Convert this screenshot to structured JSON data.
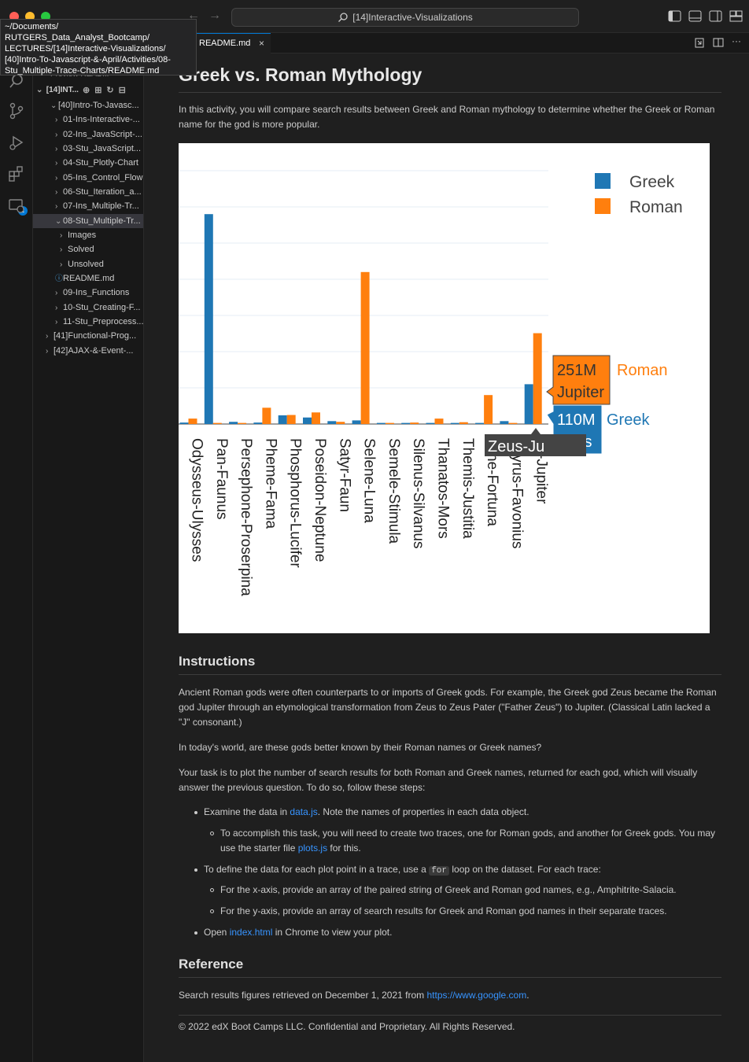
{
  "window": {
    "search_text": "[14]Interactive-Visualizations",
    "tooltip_path": "~/Documents/\nRUTGERS_Data_Analyst_Bootcamp/\nLECTURES/[14]Interactive-Visualizations/\n[40]Intro-To-Javascript-&-April/Activities/08-\nStu_Multiple-Trace-Charts/README.md",
    "activity_badge": "1"
  },
  "sidebar": {
    "partial_top": "Preview READ...",
    "section_title": "[14]INT...",
    "items": [
      {
        "label": "[40]Intro-To-Javasc...",
        "chev": "v"
      },
      {
        "label": "01-Ins-Interactive-...",
        "chev": ">"
      },
      {
        "label": "02-Ins_JavaScript-...",
        "chev": ">"
      },
      {
        "label": "03-Stu_JavaScript...",
        "chev": ">"
      },
      {
        "label": "04-Stu_Plotly-Chart",
        "chev": ">"
      },
      {
        "label": "05-Ins_Control_Flow",
        "chev": ">"
      },
      {
        "label": "06-Stu_Iteration_a...",
        "chev": ">"
      },
      {
        "label": "07-Ins_Multiple-Tr...",
        "chev": ">"
      },
      {
        "label": "08-Stu_Multiple-Tr...",
        "chev": "v"
      },
      {
        "label": "Images",
        "chev": ">"
      },
      {
        "label": "Solved",
        "chev": ">"
      },
      {
        "label": "Unsolved",
        "chev": ">"
      },
      {
        "label": "README.md",
        "chev": "i"
      },
      {
        "label": "09-Ins_Functions",
        "chev": ">"
      },
      {
        "label": "10-Stu_Creating-F...",
        "chev": ">"
      },
      {
        "label": "11-Stu_Preprocess...",
        "chev": ">"
      },
      {
        "label": "[41]Functional-Prog...",
        "chev": ">"
      },
      {
        "label": "[42]AJAX-&-Event-...",
        "chev": ">"
      }
    ]
  },
  "editor": {
    "tab_label": "README.md"
  },
  "doc": {
    "title": "Greek vs. Roman Mythology",
    "intro": "In this activity, you will compare search results between Greek and Roman mythology to determine whether the Greek or Roman name for the god is more popular.",
    "instructions_heading": "Instructions",
    "instr_p1": "Ancient Roman gods were often counterparts to or imports of Greek gods. For example, the Greek god Zeus became the Roman god Jupiter through an etymological transformation from Zeus to Zeus Pater (\"Father Zeus\") to Jupiter. (Classical Latin lacked a \"J\" consonant.)",
    "instr_p2": "In today's world, are these gods better known by their Roman names or Greek names?",
    "instr_p3": "Your task is to plot the number of search results for both Roman and Greek names, returned for each god, which will visually answer the previous question. To do so, follow these steps:",
    "b1_pre": "Examine the data in ",
    "b1_link": "data.js",
    "b1_post": ". Note the names of properties in each data object.",
    "b1_sub_pre": "To accomplish this task, you will need to create two traces, one for Roman gods, and another for Greek gods. You may use the starter file ",
    "b1_sub_link": "plots.js",
    "b1_sub_post": " for this.",
    "b2_pre": "To define the data for each plot point in a trace, use a ",
    "b2_code": "for",
    "b2_post": " loop on the dataset. For each trace:",
    "b2_sub1": "For the x-axis, provide an array of the paired string of Greek and Roman god names, e.g., Amphitrite-Salacia.",
    "b2_sub2": "For the y-axis, provide an array of search results for Greek and Roman god names in their separate traces.",
    "b3_pre": "Open ",
    "b3_link": "index.html",
    "b3_post": " in Chrome to view your plot.",
    "reference_heading": "Reference",
    "ref_pre": "Search results figures retrieved on December 1, 2021 from ",
    "ref_link": "https://www.google.com",
    "ref_post": ".",
    "copyright": "© 2022 edX Boot Camps LLC. Confidential and Proprietary. All Rights Reserved."
  },
  "chart_data": {
    "type": "bar",
    "categories": [
      "Odysseus-Ulysses",
      "Pan-Faunus",
      "Persephone-Proserpina",
      "Pheme-Fama",
      "Phosphorus-Lucifer",
      "Poseidon-Neptune",
      "Satyr-Faun",
      "Selene-Luna",
      "Semele-Stimula",
      "Silenus-Silvanus",
      "Thanatos-Mors",
      "Themis-Justitia",
      "Tyche-Fortuna",
      "Zephyrus-Favonius",
      "Zeus-Jupiter"
    ],
    "category_labels_shown": [
      "Odysseus-Ulysses",
      "Pan-Faunus",
      "Persephone-Proserpina",
      "Pheme-Fama",
      "Phosphorus-Lucifer",
      "Poseidon-Neptune",
      "Satyr-Faun",
      "Selene-Luna",
      "Semele-Stimula",
      "Silenus-Silvanus",
      "Thanatos-Mors",
      "Themis-Justitia",
      "yche-Fortuna",
      "phyrus-Favonius",
      "us-Jupiter"
    ],
    "series": [
      {
        "name": "Greek",
        "color": "#1f77b4",
        "values": [
          4,
          580,
          6,
          4,
          24,
          18,
          8,
          10,
          3,
          3,
          3,
          3,
          3,
          8,
          110
        ]
      },
      {
        "name": "Roman",
        "color": "#ff7f0e",
        "values": [
          15,
          3,
          3,
          45,
          25,
          32,
          6,
          420,
          3,
          4,
          15,
          5,
          80,
          3,
          251
        ]
      }
    ],
    "hover": {
      "x_label": "Zeus-Jupiter",
      "roman_value": "251M",
      "roman_name": "Jupiter",
      "roman_series": "Roman",
      "greek_value": "110M",
      "greek_name": "Zeus",
      "greek_series": "Greek",
      "x_tip_visible": "Zeus-Ju"
    },
    "ylim": [
      0,
      700
    ],
    "grid": true,
    "legend": "top-right"
  }
}
